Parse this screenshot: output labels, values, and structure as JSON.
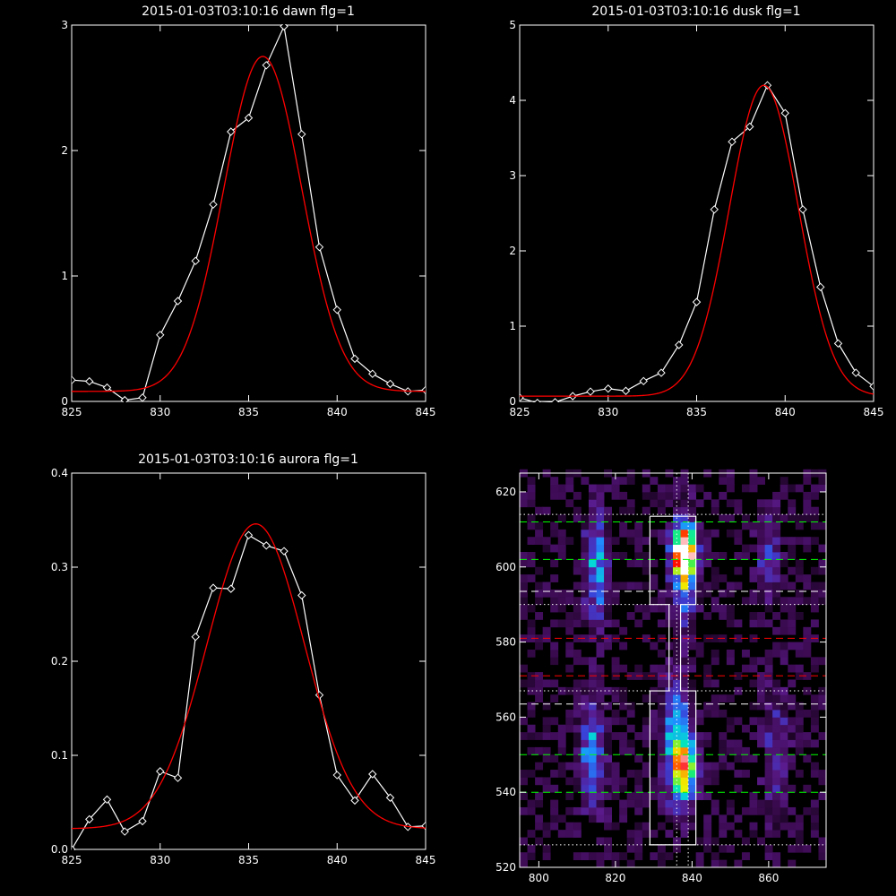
{
  "chart_data": [
    {
      "type": "line",
      "title": "2015-01-03T03:10:16 dawn flg=1",
      "xlim": [
        825,
        845
      ],
      "ylim": [
        0,
        3
      ],
      "x_ticks": [
        "825",
        "830",
        "835",
        "840",
        "845"
      ],
      "y_ticks": [
        "0",
        "1",
        "2",
        "3"
      ],
      "series": [
        {
          "kind": "data",
          "color": "#ffffff",
          "marker": "diamond",
          "x": [
            825,
            826,
            827,
            828,
            829,
            830,
            831,
            832,
            833,
            834,
            835,
            836,
            837,
            838,
            839,
            840,
            841,
            842,
            843,
            844,
            845
          ],
          "y": [
            0.17,
            0.16,
            0.11,
            0.01,
            0.03,
            0.53,
            0.8,
            1.12,
            1.57,
            2.15,
            2.26,
            2.68,
            2.99,
            2.13,
            1.23,
            0.73,
            0.34,
            0.22,
            0.14,
            0.08,
            0.09
          ]
        },
        {
          "kind": "fit",
          "color": "#ff0000",
          "gaussian": {
            "amplitude": 2.67,
            "center": 835.8,
            "sigma": 2.2,
            "baseline": 0.08
          }
        }
      ]
    },
    {
      "type": "line",
      "title": "2015-01-03T03:10:16 dusk flg=1",
      "xlim": [
        825,
        845
      ],
      "ylim": [
        0,
        5
      ],
      "x_ticks": [
        "825",
        "830",
        "835",
        "840",
        "845"
      ],
      "y_ticks": [
        "0",
        "1",
        "2",
        "3",
        "4",
        "5"
      ],
      "series": [
        {
          "kind": "data",
          "color": "#ffffff",
          "marker": "diamond",
          "x": [
            825,
            826,
            827,
            828,
            829,
            830,
            831,
            832,
            833,
            834,
            835,
            836,
            837,
            838,
            839,
            840,
            841,
            842,
            843,
            844,
            845
          ],
          "y": [
            0.05,
            -0.02,
            -0.01,
            0.07,
            0.13,
            0.17,
            0.14,
            0.27,
            0.38,
            0.75,
            1.32,
            2.55,
            3.45,
            3.65,
            4.2,
            3.83,
            2.55,
            1.52,
            0.77,
            0.38,
            0.2
          ]
        },
        {
          "kind": "fit",
          "color": "#ff0000",
          "gaussian": {
            "amplitude": 4.13,
            "center": 838.8,
            "sigma": 1.95,
            "baseline": 0.07
          }
        }
      ]
    },
    {
      "type": "line",
      "title": "2015-01-03T03:10:16 aurora flg=1",
      "xlim": [
        825,
        845
      ],
      "ylim": [
        0,
        0.4
      ],
      "x_ticks": [
        "825",
        "830",
        "835",
        "840",
        "845"
      ],
      "y_ticks": [
        "0.0",
        "0.1",
        "0.2",
        "0.3",
        "0.4"
      ],
      "series": [
        {
          "kind": "data",
          "color": "#ffffff",
          "marker": "diamond",
          "x": [
            825,
            826,
            827,
            828,
            829,
            830,
            831,
            832,
            833,
            834,
            835,
            836,
            837,
            838,
            839,
            840,
            841,
            842,
            843,
            844,
            845
          ],
          "y": [
            0.0,
            0.032,
            0.053,
            0.019,
            0.03,
            0.083,
            0.076,
            0.226,
            0.278,
            0.277,
            0.334,
            0.323,
            0.317,
            0.27,
            0.164,
            0.079,
            0.052,
            0.08,
            0.055,
            0.024,
            0.025
          ]
        },
        {
          "kind": "fit",
          "color": "#ff0000",
          "gaussian": {
            "amplitude": 0.324,
            "center": 835.4,
            "sigma": 2.75,
            "baseline": 0.022
          }
        }
      ]
    },
    {
      "type": "heatmap",
      "title": "",
      "xlim": [
        795,
        875
      ],
      "ylim": [
        520,
        625
      ],
      "x_ticks": [
        "800",
        "820",
        "840",
        "860"
      ],
      "y_ticks": [
        "520",
        "540",
        "560",
        "580",
        "600",
        "620"
      ],
      "bin_x": 2,
      "bin_y": 2,
      "blobs": [
        {
          "x": 838,
          "y": 604,
          "sx": 1.8,
          "sy": 3.5,
          "amp": 1.0
        },
        {
          "x": 838,
          "y": 600,
          "sx": 2.2,
          "sy": 9,
          "amp": 0.55
        },
        {
          "x": 838,
          "y": 546,
          "sx": 2.3,
          "sy": 6,
          "amp": 0.55
        },
        {
          "x": 836,
          "y": 555,
          "sx": 2.5,
          "sy": 12,
          "amp": 0.35
        },
        {
          "x": 815,
          "y": 600,
          "sx": 2.2,
          "sy": 11,
          "amp": 0.35
        },
        {
          "x": 814,
          "y": 550,
          "sx": 2.3,
          "sy": 10,
          "amp": 0.34
        },
        {
          "x": 860,
          "y": 603,
          "sx": 2.3,
          "sy": 9,
          "amp": 0.2
        },
        {
          "x": 862,
          "y": 550,
          "sx": 2.4,
          "sy": 13,
          "amp": 0.18
        }
      ],
      "colormap": [
        "#000000",
        "#3a0a4f",
        "#5a1a8a",
        "#3b3fd6",
        "#1e8fff",
        "#00e0d0",
        "#20f060",
        "#f0f000",
        "#ff8000",
        "#ff0000",
        "#ffffff"
      ],
      "boxes": [
        {
          "color": "#ffffff",
          "points": [
            [
              829,
              613.5
            ],
            [
              841,
              613.5
            ],
            [
              841,
              590
            ],
            [
              837,
              590
            ],
            [
              837,
              567
            ],
            [
              841,
              567
            ],
            [
              841,
              526
            ],
            [
              829,
              526
            ],
            [
              829,
              567
            ],
            [
              834,
              567
            ],
            [
              834,
              590
            ],
            [
              829,
              590
            ],
            [
              829,
              613.5
            ]
          ]
        }
      ],
      "hlines": [
        {
          "y": 612,
          "color": "#00ff00",
          "style": "dashed"
        },
        {
          "y": 602,
          "color": "#00ff00",
          "style": "dashed"
        },
        {
          "y": 593.5,
          "color": "#ffffff",
          "style": "dashed"
        },
        {
          "y": 581,
          "color": "#ff0000",
          "style": "dashed"
        },
        {
          "y": 571,
          "color": "#ff0000",
          "style": "dashed"
        },
        {
          "y": 563.5,
          "color": "#ffffff",
          "style": "dashed"
        },
        {
          "y": 550,
          "color": "#00ff00",
          "style": "dashed"
        },
        {
          "y": 540,
          "color": "#00ff00",
          "style": "dashed"
        },
        {
          "y": 614,
          "color": "#ffffff",
          "style": "dotted"
        },
        {
          "y": 590,
          "color": "#ffffff",
          "style": "dotted"
        },
        {
          "y": 567,
          "color": "#ffffff",
          "style": "dotted"
        },
        {
          "y": 526,
          "color": "#ffffff",
          "style": "dotted"
        }
      ],
      "vlines": [
        {
          "x": 836,
          "color": "#ffffff",
          "style": "dotted"
        },
        {
          "x": 839,
          "color": "#ffffff",
          "style": "dotted"
        }
      ]
    }
  ]
}
